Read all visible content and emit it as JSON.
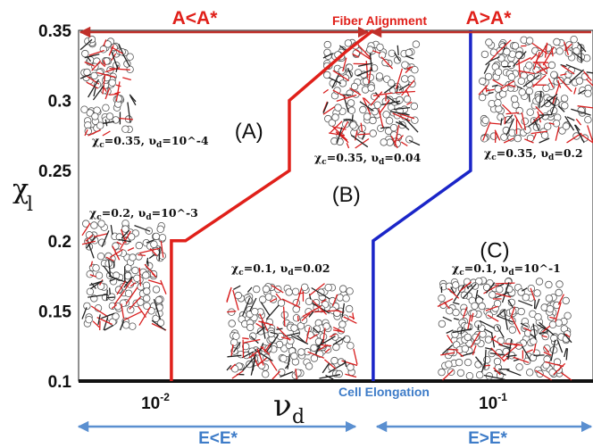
{
  "chart_data": {
    "type": "line",
    "xlabel": "ν_d",
    "ylabel": "χ_l",
    "x_scale": "log",
    "xlim": [
      0.003,
      0.18
    ],
    "ylim": [
      0.1,
      0.35
    ],
    "x_ticks": [
      {
        "value": 0.01,
        "label": "10^-2"
      },
      {
        "value": 0.1,
        "label": "10^-1"
      }
    ],
    "y_ticks": [
      0.1,
      0.15,
      0.2,
      0.25,
      0.3,
      0.35
    ],
    "y_tick_labels": [
      "0.1",
      "0.15",
      "0.2",
      "0.25",
      "0.3",
      "0.35"
    ],
    "series": [
      {
        "color": "#e0201a",
        "points": [
          [
            0.0095,
            0.1
          ],
          [
            0.0095,
            0.2
          ],
          [
            0.0105,
            0.2
          ],
          [
            0.022,
            0.25
          ],
          [
            0.022,
            0.3
          ],
          [
            0.033,
            0.335
          ],
          [
            0.04,
            0.35
          ]
        ]
      },
      {
        "color": "#1a25c8",
        "points": [
          [
            0.04,
            0.1
          ],
          [
            0.04,
            0.2
          ],
          [
            0.08,
            0.25
          ],
          [
            0.08,
            0.35
          ]
        ]
      }
    ],
    "regions": [
      {
        "id": "A",
        "label": "(A)",
        "x": 0.0165,
        "y": 0.273
      },
      {
        "id": "B",
        "label": "(B)",
        "x": 0.033,
        "y": 0.228
      },
      {
        "id": "C",
        "label": "(C)",
        "x": 0.095,
        "y": 0.188
      }
    ],
    "top_annotation": {
      "title": "Fiber Alignment",
      "left": "A<A*",
      "right": "A>A*",
      "color": "#c0302a"
    },
    "bottom_annotation": {
      "title": "Cell Elongation",
      "left": "E<E*",
      "right": "E>E*",
      "color": "#3e7cc8"
    },
    "insets": [
      {
        "chi": "0.35",
        "vd": "10^-4"
      },
      {
        "chi": "0.35",
        "vd": "0.04"
      },
      {
        "chi": "0.35",
        "vd": "0.2"
      },
      {
        "chi": "0.2",
        "vd": "10^-3"
      },
      {
        "chi": "0.1",
        "vd": "0.02"
      },
      {
        "chi": "0.1",
        "vd": "10^-1"
      }
    ]
  }
}
